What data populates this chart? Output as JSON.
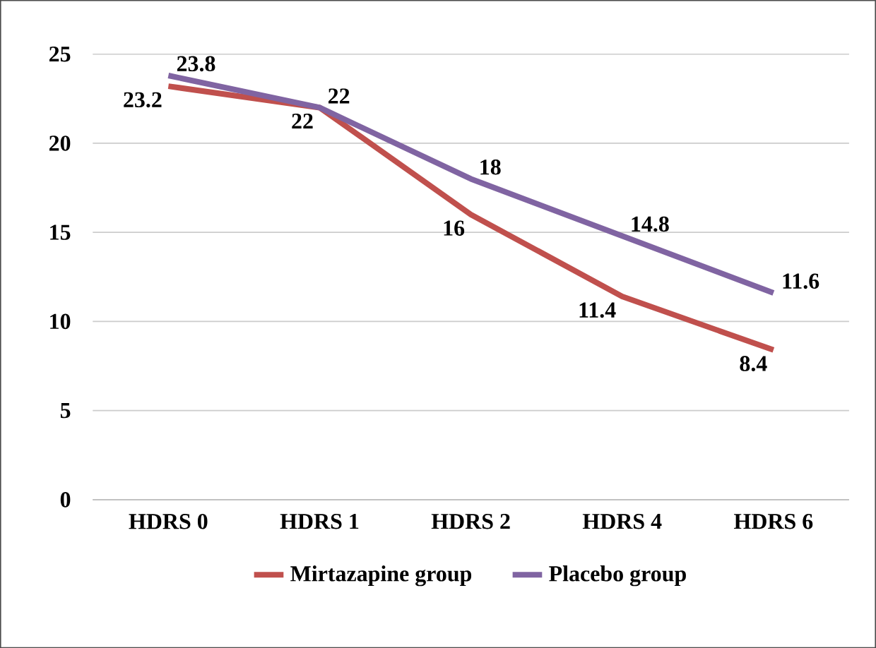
{
  "chart_data": {
    "type": "line",
    "categories": [
      "HDRS 0",
      "HDRS 1",
      "HDRS 2",
      "HDRS 4",
      "HDRS 6"
    ],
    "series": [
      {
        "name": "Mirtazapine group",
        "color": "#c0504d",
        "values": [
          23.2,
          22,
          16,
          11.4,
          8.4
        ]
      },
      {
        "name": "Placebo group",
        "color": "#8064a2",
        "values": [
          23.8,
          22,
          18,
          14.8,
          11.6
        ]
      }
    ],
    "ylim": [
      0,
      25
    ],
    "yticks": [
      0,
      5,
      10,
      15,
      20,
      25
    ],
    "grid": "y",
    "legend": "bottom",
    "data_labels": true,
    "marker": "none",
    "line_style": "solid"
  }
}
